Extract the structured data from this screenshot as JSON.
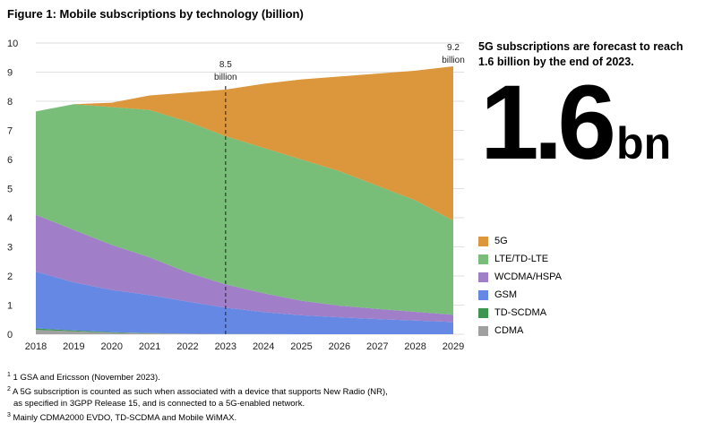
{
  "title": "Figure 1: Mobile subscriptions by technology (billion)",
  "headline": "5G subscriptions are forecast to reach 1.6 billion by the end of 2023.",
  "big_number": {
    "value": "1.6",
    "unit": "bn"
  },
  "colors": {
    "5G": "#dc963c",
    "LTE/TD-LTE": "#78be78",
    "WCDMA/HSPA": "#a07ec8",
    "GSM": "#6488e4",
    "TD-SCDMA": "#3c9650",
    "CDMA": "#a0a0a0"
  },
  "chart_data": {
    "type": "area",
    "stacked": true,
    "x": [
      2018,
      2019,
      2020,
      2021,
      2022,
      2023,
      2024,
      2025,
      2026,
      2027,
      2028,
      2029
    ],
    "xlabels": [
      "2018",
      "2019",
      "2020",
      "2021",
      "2022",
      "2023",
      "2024",
      "2025",
      "2026",
      "2027",
      "2028",
      "2029"
    ],
    "ylim": [
      0,
      10
    ],
    "yticks": [
      "0",
      "1",
      "2",
      "3",
      "4",
      "5",
      "6",
      "7",
      "8",
      "9",
      "10"
    ],
    "grid": true,
    "series": [
      {
        "name": "CDMA",
        "values": [
          0.15,
          0.1,
          0.05,
          0.03,
          0.02,
          0.01,
          0.01,
          0.0,
          0.0,
          0.0,
          0.0,
          0.0
        ]
      },
      {
        "name": "TD-SCDMA",
        "values": [
          0.05,
          0.03,
          0.02,
          0.01,
          0.0,
          0.0,
          0.0,
          0.0,
          0.0,
          0.0,
          0.0,
          0.0
        ]
      },
      {
        "name": "GSM",
        "values": [
          1.95,
          1.65,
          1.45,
          1.3,
          1.1,
          0.9,
          0.75,
          0.65,
          0.58,
          0.52,
          0.47,
          0.42
        ]
      },
      {
        "name": "WCDMA/HSPA",
        "values": [
          1.95,
          1.8,
          1.55,
          1.3,
          1.0,
          0.8,
          0.65,
          0.5,
          0.4,
          0.35,
          0.3,
          0.25
        ]
      },
      {
        "name": "LTE/TD-LTE",
        "values": [
          3.55,
          4.32,
          4.73,
          5.06,
          5.18,
          5.09,
          4.99,
          4.85,
          4.62,
          4.23,
          3.83,
          3.23
        ]
      },
      {
        "name": "5G",
        "values": [
          0.0,
          0.0,
          0.15,
          0.5,
          1.0,
          1.6,
          2.2,
          2.75,
          3.25,
          3.85,
          4.45,
          5.3
        ]
      }
    ],
    "annotations": [
      {
        "x": 2023,
        "text1": "8.5",
        "text2": "billion"
      },
      {
        "x": 2029,
        "text1": "9.2",
        "text2": "billion"
      }
    ]
  },
  "legend": [
    "5G",
    "LTE/TD-LTE",
    "WCDMA/HSPA",
    "GSM",
    "TD-SCDMA",
    "CDMA"
  ],
  "footnotes": [
    {
      "sup": "1",
      "text": "1 GSA and Ericsson (November 2023)."
    },
    {
      "sup": "2",
      "text": "A 5G subscription is counted as such when associated with a device that supports New Radio (NR),"
    },
    {
      "sup": "",
      "text": "as specified in 3GPP Release 15, and is connected to a 5G-enabled network."
    },
    {
      "sup": "3",
      "text": "Mainly CDMA2000 EVDO, TD-SCDMA and Mobile WiMAX."
    }
  ]
}
